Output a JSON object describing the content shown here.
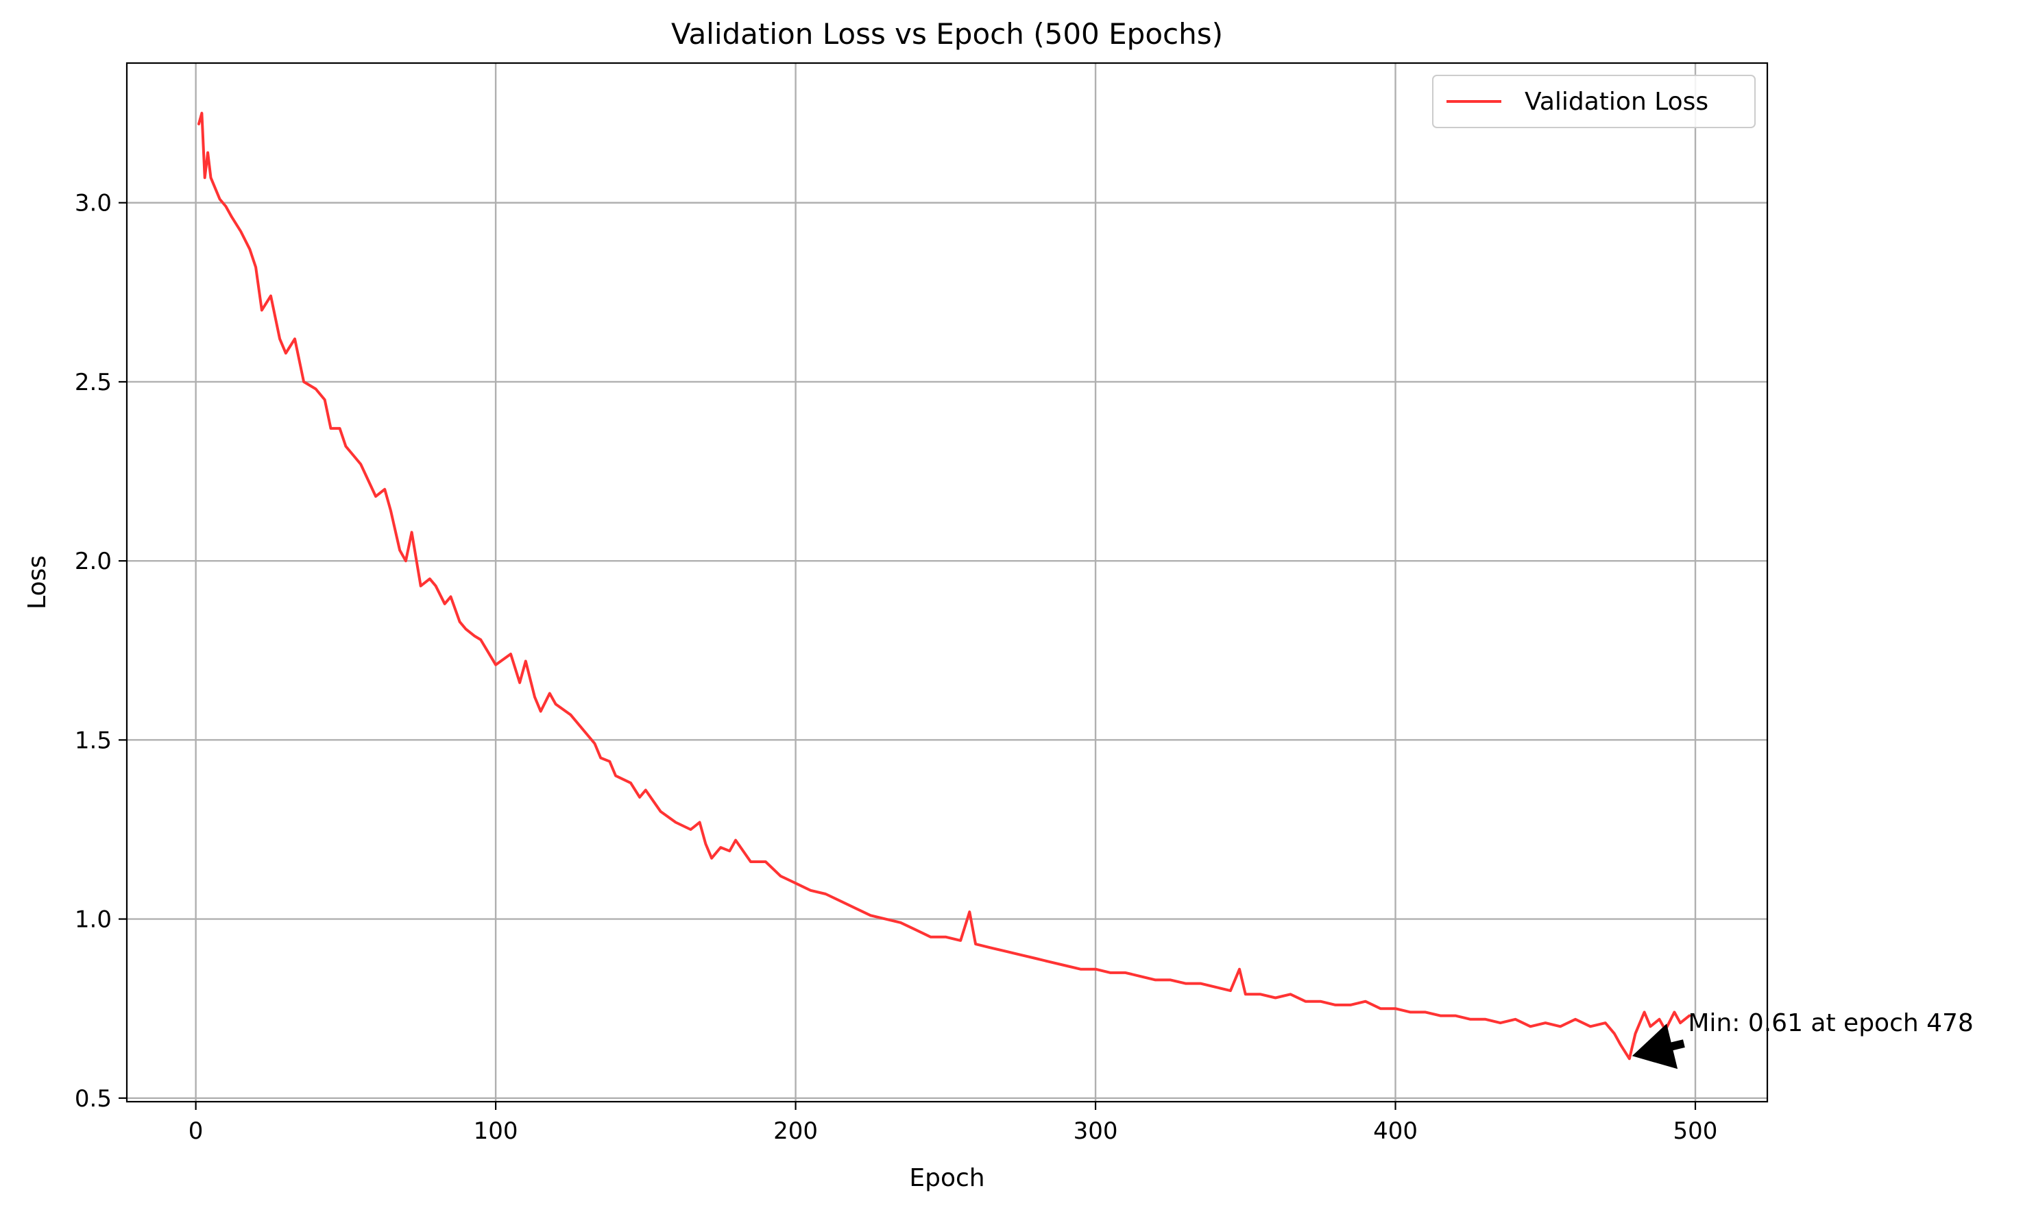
{
  "chart_data": {
    "type": "line",
    "title": "Validation Loss vs Epoch (500 Epochs)",
    "xlabel": "Epoch",
    "ylabel": "Loss",
    "xlim": [
      -23,
      524
    ],
    "ylim": [
      0.49,
      3.39
    ],
    "xticks": [
      0,
      100,
      200,
      300,
      400,
      500
    ],
    "xtick_labels": [
      "0",
      "100",
      "200",
      "300",
      "400",
      "500"
    ],
    "yticks": [
      0.5,
      1.0,
      1.5,
      2.0,
      2.5,
      3.0
    ],
    "ytick_labels": [
      "0.5",
      "1.0",
      "1.5",
      "2.0",
      "2.5",
      "3.0"
    ],
    "grid": true,
    "legend_position": "top-right",
    "series": [
      {
        "name": "Validation Loss",
        "color": "#ff3333",
        "x": [
          1,
          2,
          3,
          4,
          5,
          8,
          10,
          12,
          15,
          18,
          20,
          22,
          25,
          28,
          30,
          33,
          36,
          40,
          43,
          45,
          48,
          50,
          55,
          60,
          63,
          65,
          68,
          70,
          72,
          75,
          78,
          80,
          83,
          85,
          88,
          90,
          93,
          95,
          100,
          105,
          108,
          110,
          113,
          115,
          118,
          120,
          125,
          130,
          133,
          135,
          138,
          140,
          145,
          148,
          150,
          155,
          160,
          165,
          168,
          170,
          172,
          175,
          178,
          180,
          185,
          190,
          195,
          200,
          205,
          210,
          215,
          220,
          225,
          230,
          235,
          240,
          245,
          250,
          255,
          258,
          260,
          265,
          270,
          275,
          280,
          285,
          290,
          295,
          300,
          305,
          310,
          315,
          320,
          325,
          330,
          335,
          340,
          345,
          348,
          350,
          355,
          360,
          365,
          370,
          375,
          380,
          385,
          390,
          395,
          400,
          405,
          410,
          415,
          420,
          425,
          430,
          435,
          440,
          445,
          450,
          455,
          460,
          465,
          470,
          473,
          475,
          478,
          480,
          483,
          485,
          488,
          490,
          493,
          495,
          498
        ],
        "values": [
          3.22,
          3.25,
          3.07,
          3.14,
          3.07,
          3.01,
          2.99,
          2.96,
          2.92,
          2.87,
          2.82,
          2.7,
          2.74,
          2.62,
          2.58,
          2.62,
          2.5,
          2.48,
          2.45,
          2.37,
          2.37,
          2.32,
          2.27,
          2.18,
          2.2,
          2.14,
          2.03,
          2.0,
          2.08,
          1.93,
          1.95,
          1.93,
          1.88,
          1.9,
          1.83,
          1.81,
          1.79,
          1.78,
          1.71,
          1.74,
          1.66,
          1.72,
          1.62,
          1.58,
          1.63,
          1.6,
          1.57,
          1.52,
          1.49,
          1.45,
          1.44,
          1.4,
          1.38,
          1.34,
          1.36,
          1.3,
          1.27,
          1.25,
          1.27,
          1.21,
          1.17,
          1.2,
          1.19,
          1.22,
          1.16,
          1.16,
          1.12,
          1.1,
          1.08,
          1.07,
          1.05,
          1.03,
          1.01,
          1.0,
          0.99,
          0.97,
          0.95,
          0.95,
          0.94,
          1.02,
          0.93,
          0.92,
          0.91,
          0.9,
          0.89,
          0.88,
          0.87,
          0.86,
          0.86,
          0.85,
          0.85,
          0.84,
          0.83,
          0.83,
          0.82,
          0.82,
          0.81,
          0.8,
          0.86,
          0.79,
          0.79,
          0.78,
          0.79,
          0.77,
          0.77,
          0.76,
          0.76,
          0.77,
          0.75,
          0.75,
          0.74,
          0.74,
          0.73,
          0.73,
          0.72,
          0.72,
          0.71,
          0.72,
          0.7,
          0.71,
          0.7,
          0.72,
          0.7,
          0.71,
          0.68,
          0.65,
          0.61,
          0.68,
          0.74,
          0.7,
          0.72,
          0.69,
          0.74,
          0.71,
          0.73
        ]
      }
    ],
    "annotations": [
      {
        "text": "Min: 0.61 at epoch 478",
        "point": [
          478,
          0.61
        ],
        "text_pos": [
          493,
          0.71
        ]
      }
    ]
  }
}
